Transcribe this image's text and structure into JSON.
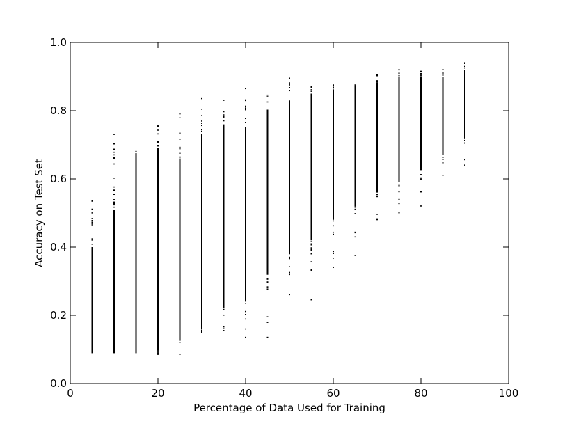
{
  "chart_data": {
    "type": "scatter",
    "title": "",
    "xlabel": "Percentage of Data Used for Training",
    "ylabel": "Accuracy on Test Set",
    "xlim": [
      0,
      100
    ],
    "ylim": [
      0.0,
      1.0
    ],
    "x_ticks": [
      0,
      20,
      40,
      60,
      80,
      100
    ],
    "x_tick_labels": [
      "0",
      "20",
      "40",
      "60",
      "80",
      "100"
    ],
    "y_ticks": [
      0.0,
      0.2,
      0.4,
      0.6,
      0.8,
      1.0
    ],
    "y_tick_labels": [
      "0.0",
      "0.2",
      "0.4",
      "0.6",
      "0.8",
      "1.0"
    ],
    "grid": false,
    "legend": "none",
    "marker_color": "#000000",
    "series": [
      {
        "name": "",
        "x": [
          5,
          10,
          15,
          20,
          25,
          30,
          35,
          40,
          45,
          50,
          55,
          60,
          65,
          70,
          75,
          80,
          85,
          90
        ],
        "dense_min": [
          0.09,
          0.09,
          0.09,
          0.1,
          0.13,
          0.16,
          0.22,
          0.24,
          0.32,
          0.38,
          0.42,
          0.48,
          0.52,
          0.56,
          0.59,
          0.63,
          0.67,
          0.72
        ],
        "dense_max": [
          0.4,
          0.51,
          0.67,
          0.69,
          0.66,
          0.73,
          0.76,
          0.75,
          0.8,
          0.83,
          0.85,
          0.86,
          0.87,
          0.88,
          0.9,
          0.9,
          0.9,
          0.92
        ],
        "min": [
          0.09,
          0.09,
          0.09,
          0.085,
          0.085,
          0.15,
          0.155,
          0.135,
          0.135,
          0.26,
          0.245,
          0.34,
          0.375,
          0.48,
          0.5,
          0.52,
          0.61,
          0.64
        ],
        "max": [
          0.535,
          0.73,
          0.68,
          0.755,
          0.79,
          0.835,
          0.83,
          0.865,
          0.845,
          0.895,
          0.87,
          0.875,
          0.875,
          0.905,
          0.92,
          0.915,
          0.92,
          0.94
        ]
      }
    ]
  }
}
